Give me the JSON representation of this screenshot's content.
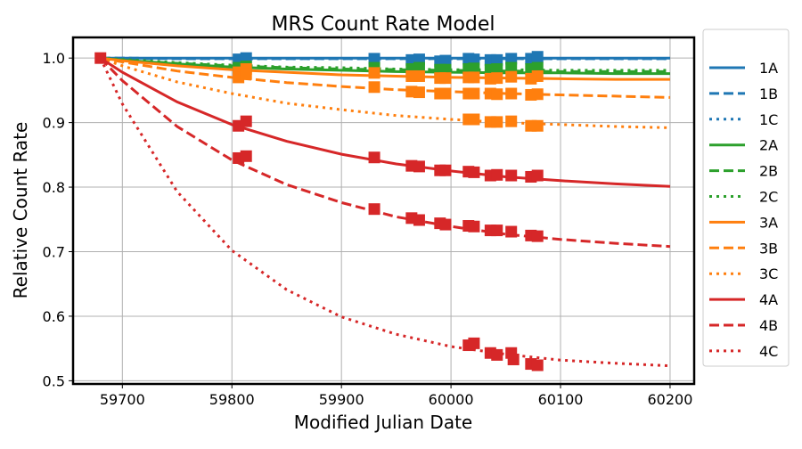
{
  "chart_data": {
    "type": "line",
    "title": "MRS Count Rate Model",
    "xlabel": "Modified Julian Date",
    "ylabel": "Relative Count Rate",
    "xlim": [
      59655,
      60222
    ],
    "ylim": [
      0.495,
      1.032
    ],
    "xticks": [
      59700,
      59800,
      59900,
      60000,
      60100,
      60200
    ],
    "yticks": [
      0.5,
      0.6,
      0.7,
      0.8,
      0.9,
      1.0
    ],
    "xtick_labels": [
      "59700",
      "59800",
      "59900",
      "60000",
      "60100",
      "60200"
    ],
    "ytick_labels": [
      "0.5",
      "0.6",
      "0.7",
      "0.8",
      "0.9",
      "1.0"
    ],
    "grid": true,
    "legend_position": "outside-right",
    "x": [
      59680,
      59700,
      59750,
      59800,
      59850,
      59900,
      59950,
      60000,
      60050,
      60100,
      60150,
      60200
    ],
    "series": [
      {
        "name": "1A",
        "color": "#1f77b4",
        "style": "solid",
        "values": [
          1,
          1,
          1,
          1,
          1,
          1,
          1,
          1,
          1,
          1,
          1,
          1
        ],
        "markers": [
          [
            59806,
            0.998
          ],
          [
            59813,
            1.0
          ],
          [
            59930,
            0.999
          ],
          [
            59964,
            0.997
          ],
          [
            59971,
            0.998
          ],
          [
            59990,
            0.995
          ],
          [
            59995,
            0.996
          ],
          [
            60016,
            0.999
          ],
          [
            60021,
            0.998
          ],
          [
            60036,
            0.997
          ],
          [
            60042,
            0.997
          ],
          [
            60055,
            0.999
          ],
          [
            60073,
            0.999
          ],
          [
            60079,
            1.002
          ]
        ]
      },
      {
        "name": "1B",
        "color": "#1f77b4",
        "style": "dashed",
        "values": [
          1,
          1,
          0.999,
          0.999,
          0.999,
          0.999,
          0.999,
          0.999,
          0.999,
          0.999,
          0.999,
          0.999
        ],
        "markers": []
      },
      {
        "name": "1C",
        "color": "#1f77b4",
        "style": "dotted",
        "values": [
          1,
          1,
          0.999,
          0.999,
          0.999,
          0.999,
          0.999,
          0.999,
          0.999,
          0.999,
          0.999,
          0.999
        ],
        "markers": []
      },
      {
        "name": "2A",
        "color": "#2ca02c",
        "style": "solid",
        "values": [
          1,
          0.997,
          0.991,
          0.986,
          0.983,
          0.981,
          0.979,
          0.978,
          0.977,
          0.977,
          0.976,
          0.976
        ],
        "markers": [
          [
            59806,
            0.985
          ],
          [
            59813,
            0.987
          ],
          [
            59930,
            0.985
          ],
          [
            59964,
            0.983
          ],
          [
            59971,
            0.985
          ],
          [
            59990,
            0.982
          ],
          [
            59995,
            0.982
          ],
          [
            60016,
            0.983
          ],
          [
            60021,
            0.984
          ],
          [
            60036,
            0.982
          ],
          [
            60042,
            0.983
          ],
          [
            60055,
            0.985
          ],
          [
            60073,
            0.983
          ],
          [
            60079,
            0.985
          ]
        ]
      },
      {
        "name": "2B",
        "color": "#2ca02c",
        "style": "dashed",
        "values": [
          1,
          0.997,
          0.992,
          0.988,
          0.985,
          0.983,
          0.982,
          0.981,
          0.98,
          0.979,
          0.979,
          0.979
        ],
        "markers": []
      },
      {
        "name": "2C",
        "color": "#2ca02c",
        "style": "dotted",
        "values": [
          1,
          0.998,
          0.993,
          0.989,
          0.986,
          0.985,
          0.983,
          0.982,
          0.982,
          0.981,
          0.981,
          0.981
        ],
        "markers": []
      },
      {
        "name": "3A",
        "color": "#ff7f0e",
        "style": "solid",
        "values": [
          1,
          0.996,
          0.988,
          0.982,
          0.978,
          0.974,
          0.972,
          0.97,
          0.969,
          0.968,
          0.967,
          0.967
        ],
        "markers": [
          [
            59806,
            0.978
          ],
          [
            59813,
            0.983
          ],
          [
            59930,
            0.977
          ],
          [
            59964,
            0.972
          ],
          [
            59971,
            0.972
          ],
          [
            59990,
            0.969
          ],
          [
            59995,
            0.969
          ],
          [
            60016,
            0.97
          ],
          [
            60021,
            0.97
          ],
          [
            60036,
            0.968
          ],
          [
            60042,
            0.969
          ],
          [
            60055,
            0.971
          ],
          [
            60073,
            0.968
          ],
          [
            60079,
            0.972
          ]
        ]
      },
      {
        "name": "3B",
        "color": "#ff7f0e",
        "style": "dashed",
        "values": [
          1,
          0.994,
          0.98,
          0.97,
          0.962,
          0.956,
          0.951,
          0.948,
          0.945,
          0.943,
          0.941,
          0.939
        ],
        "markers": [
          [
            59806,
            0.97
          ],
          [
            59813,
            0.975
          ],
          [
            59930,
            0.955
          ],
          [
            59964,
            0.948
          ],
          [
            59971,
            0.947
          ],
          [
            59990,
            0.945
          ],
          [
            59995,
            0.945
          ],
          [
            60016,
            0.945
          ],
          [
            60021,
            0.945
          ],
          [
            60036,
            0.945
          ],
          [
            60042,
            0.944
          ],
          [
            60055,
            0.945
          ],
          [
            60073,
            0.943
          ],
          [
            60079,
            0.944
          ]
        ]
      },
      {
        "name": "3C",
        "color": "#ff7f0e",
        "style": "dotted",
        "values": [
          1,
          0.988,
          0.963,
          0.945,
          0.93,
          0.92,
          0.911,
          0.905,
          0.9,
          0.897,
          0.894,
          0.892
        ],
        "markers": [
          [
            60016,
            0.905
          ],
          [
            60021,
            0.905
          ],
          [
            60036,
            0.901
          ],
          [
            60042,
            0.901
          ],
          [
            60055,
            0.902
          ],
          [
            60073,
            0.895
          ],
          [
            60079,
            0.895
          ]
        ]
      },
      {
        "name": "4A",
        "color": "#d62728",
        "style": "solid",
        "values": [
          1,
          0.978,
          0.932,
          0.897,
          0.871,
          0.851,
          0.836,
          0.825,
          0.816,
          0.81,
          0.805,
          0.801
        ],
        "markers": [
          [
            59680,
            1.0
          ],
          [
            59806,
            0.895
          ],
          [
            59813,
            0.902
          ],
          [
            59930,
            0.846
          ],
          [
            59964,
            0.833
          ],
          [
            59971,
            0.832
          ],
          [
            59990,
            0.826
          ],
          [
            59995,
            0.826
          ],
          [
            60016,
            0.824
          ],
          [
            60021,
            0.823
          ],
          [
            60036,
            0.818
          ],
          [
            60042,
            0.819
          ],
          [
            60055,
            0.818
          ],
          [
            60073,
            0.816
          ],
          [
            60079,
            0.818
          ]
        ]
      },
      {
        "name": "4B",
        "color": "#d62728",
        "style": "dashed",
        "values": [
          1,
          0.965,
          0.894,
          0.842,
          0.804,
          0.776,
          0.754,
          0.739,
          0.727,
          0.719,
          0.713,
          0.708
        ],
        "markers": [
          [
            59806,
            0.845
          ],
          [
            59813,
            0.848
          ],
          [
            59930,
            0.766
          ],
          [
            59964,
            0.752
          ],
          [
            59971,
            0.749
          ],
          [
            59990,
            0.744
          ],
          [
            59995,
            0.742
          ],
          [
            60016,
            0.74
          ],
          [
            60021,
            0.739
          ],
          [
            60036,
            0.733
          ],
          [
            60042,
            0.733
          ],
          [
            60055,
            0.731
          ],
          [
            60073,
            0.725
          ],
          [
            60079,
            0.724
          ]
        ]
      },
      {
        "name": "4C",
        "color": "#d62728",
        "style": "dotted",
        "values": [
          1,
          0.929,
          0.793,
          0.702,
          0.641,
          0.599,
          0.572,
          0.553,
          0.541,
          0.532,
          0.527,
          0.523
        ],
        "markers": [
          [
            60016,
            0.555
          ],
          [
            60021,
            0.558
          ],
          [
            60036,
            0.543
          ],
          [
            60042,
            0.54
          ],
          [
            60055,
            0.543
          ],
          [
            60057,
            0.533
          ],
          [
            60073,
            0.526
          ],
          [
            60079,
            0.524
          ]
        ]
      }
    ]
  }
}
